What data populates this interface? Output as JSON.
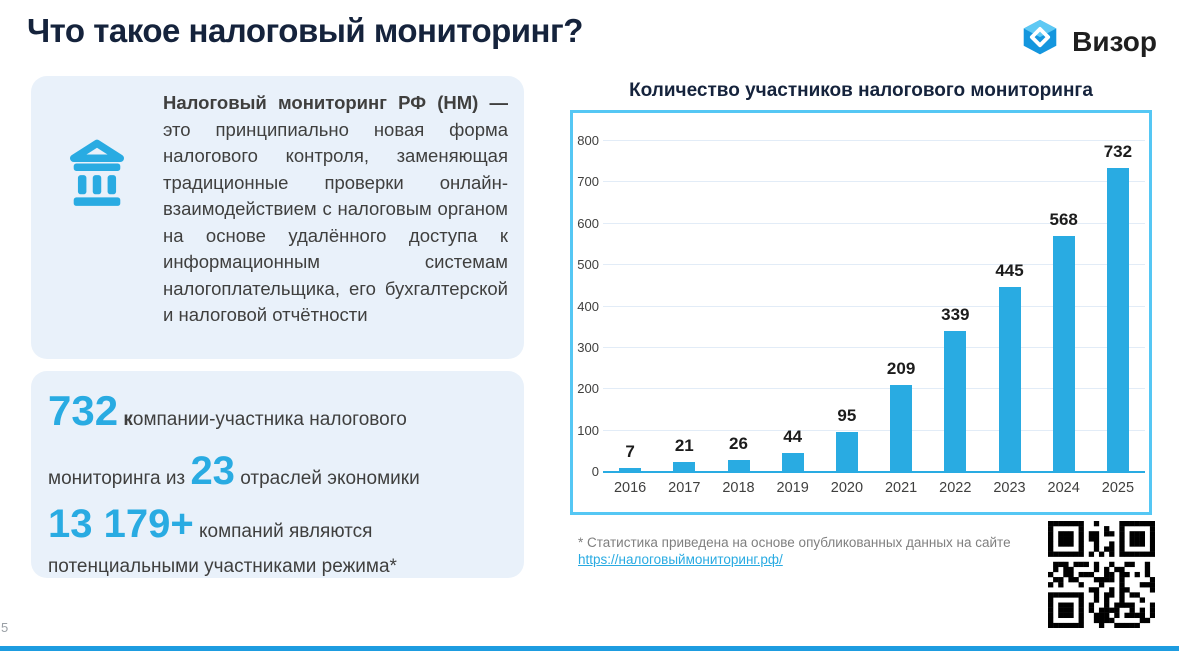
{
  "page": {
    "title": "Что такое налоговый мониторинг?",
    "number": "5"
  },
  "logo": {
    "text": "Визор",
    "icon": "vizor-cube-icon"
  },
  "info_card": {
    "icon": "bank-icon",
    "lead": "Налоговый мониторинг РФ (НМ) —",
    "body": " это принципиально новая форма налогового контроля, заменяющая традиционные проверки онлайн-взаимодействием с налоговым органом на основе удалённого доступа к информационным системам налогоплательщика, его бухгалтерской и налоговой отчётности"
  },
  "stats_card": {
    "participants_number": "732",
    "participants_label_initial": "к",
    "participants_label_rest": "омпании-участника налогового",
    "line2_prefix": "мониторинга  из",
    "industries_number": "23",
    "line2_suffix": "отраслей экономики",
    "potential_number": "13 179+",
    "potential_label": "компаний являются",
    "potential_line2": "потенциальными участниками режима*"
  },
  "chart_data": {
    "type": "bar",
    "title": "Количество участников налогового мониторинга",
    "categories": [
      "2016",
      "2017",
      "2018",
      "2019",
      "2020",
      "2021",
      "2022",
      "2023",
      "2024",
      "2025"
    ],
    "values": [
      7,
      21,
      26,
      44,
      95,
      209,
      339,
      445,
      568,
      732
    ],
    "xlabel": "",
    "ylabel": "",
    "ylim": [
      0,
      800
    ],
    "ytick_step": 100,
    "grid": true,
    "legend": false,
    "bar_color": "#29abe2"
  },
  "footnote": {
    "text": "* Статистика приведена на основе опубликованных данных на сайте",
    "link": "https://налоговыймониторинг.рф/"
  },
  "colors": {
    "accent": "#29abe2",
    "heading": "#15233c",
    "card_bg": "#e9f1fa",
    "chart_border": "#55c7f4",
    "grid_line": "#e2ecf7",
    "body_text": "#3f3f3e",
    "footnote_gray": "#7f7f7f",
    "bottom_bar": "#1d9ce0"
  }
}
